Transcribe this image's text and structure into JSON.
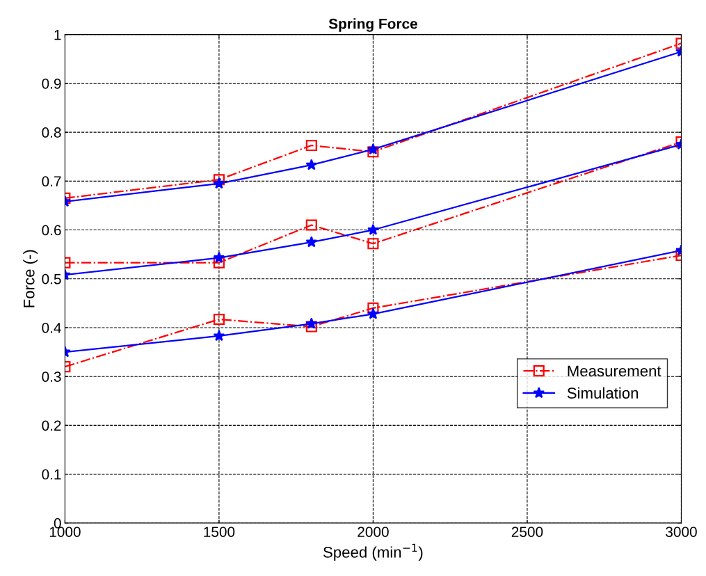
{
  "chart_data": {
    "type": "line",
    "title": "Spring Force",
    "xlabel": "Speed (min$^{−1}$)",
    "ylabel": "Force (-)",
    "x": [
      1000,
      1500,
      1800,
      2000,
      3000
    ],
    "series": [
      {
        "name": "Measurement",
        "color": "#ff0000",
        "marker": "square",
        "line_style": "dashdot",
        "values": [
          0.665,
          0.703,
          0.773,
          0.76,
          0.982
        ]
      },
      {
        "name": "Simulation",
        "color": "#0000ff",
        "marker": "star",
        "line_style": "solid",
        "values": [
          0.658,
          0.695,
          0.733,
          0.765,
          0.965
        ]
      },
      {
        "color": "#ff0000",
        "marker": "square",
        "line_style": "dashdot",
        "values": [
          0.533,
          0.533,
          0.61,
          0.572,
          0.78
        ]
      },
      {
        "color": "#0000ff",
        "marker": "star",
        "line_style": "solid",
        "values": [
          0.508,
          0.543,
          0.575,
          0.6,
          0.775
        ]
      },
      {
        "color": "#ff0000",
        "marker": "square",
        "line_style": "dashdot",
        "values": [
          0.32,
          0.417,
          0.402,
          0.44,
          0.548
        ]
      },
      {
        "color": "#0000ff",
        "marker": "star",
        "line_style": "solid",
        "values": [
          0.35,
          0.383,
          0.408,
          0.428,
          0.558
        ]
      }
    ],
    "xlim": [
      1000,
      3000
    ],
    "xticks": [
      1000,
      1500,
      2000,
      2500,
      3000
    ],
    "ylim": [
      0,
      1
    ],
    "yticks": [
      0,
      0.1,
      0.2,
      0.3,
      0.4,
      0.5,
      0.6,
      0.7,
      0.8,
      0.9,
      1
    ],
    "grid": true,
    "legend": "right"
  }
}
